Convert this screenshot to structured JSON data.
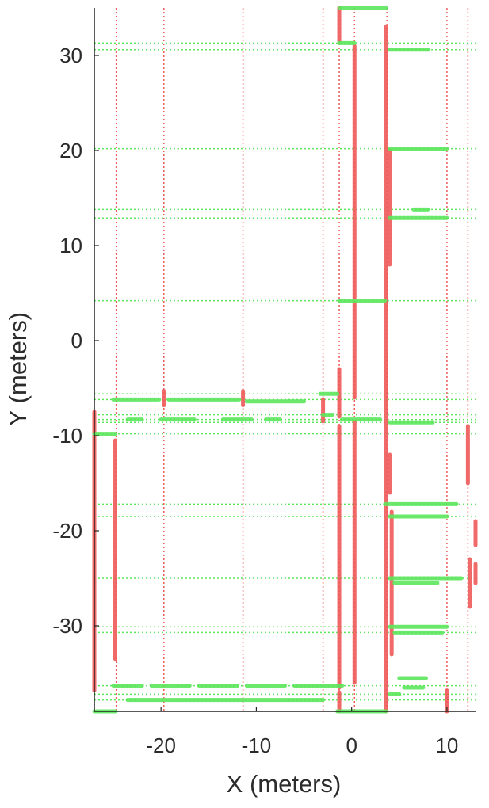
{
  "chart_data": {
    "type": "line",
    "title": "",
    "xlabel": "X (meters)",
    "ylabel": "Y (meters)",
    "xlim": [
      -27,
      13
    ],
    "ylim": [
      -39,
      35
    ],
    "xticks": [
      -20,
      -10,
      0,
      10
    ],
    "yticks": [
      -30,
      -20,
      -10,
      0,
      10,
      20,
      30
    ],
    "grid": "dotted",
    "colors": {
      "vertical": "#f05a5a",
      "horizontal": "#5ce65c",
      "axis": "#222222"
    },
    "vertical_gridlines_x": [
      -24.7,
      -19.7,
      -11.4,
      -3.0,
      -1.3,
      0.3,
      3.7,
      10.0,
      12.2
    ],
    "horizontal_gridlines_y": [
      31.3,
      30.6,
      20.2,
      13.8,
      12.9,
      4.2,
      -5.6,
      -6.2,
      -7.8,
      -8.3,
      -8.6,
      -9.8,
      -17.2,
      -18.5,
      -25.0,
      -30.1,
      -30.7,
      -36.3,
      -37.2,
      -37.8
    ],
    "series": [
      {
        "segments": [
          {
            "x": [
              -27.0,
              -27.0
            ],
            "y": [
              -7.5,
              -36.8
            ]
          },
          {
            "x": [
              -24.8,
              -24.8
            ],
            "y": [
              -10.5,
              -33.5
            ]
          },
          {
            "x": [
              -19.7,
              -19.7
            ],
            "y": [
              -5.3,
              -6.8
            ]
          },
          {
            "x": [
              -11.4,
              -11.4
            ],
            "y": [
              -5.3,
              -6.8
            ]
          },
          {
            "x": [
              -3.0,
              -3.0
            ],
            "y": [
              -6.2,
              -8.5
            ]
          },
          {
            "x": [
              -1.3,
              -1.3
            ],
            "y": [
              35.0,
              31.5
            ]
          },
          {
            "x": [
              -1.3,
              -1.3
            ],
            "y": [
              -3.0,
              -8.0
            ]
          },
          {
            "x": [
              -1.3,
              -1.3
            ],
            "y": [
              -9.0,
              -36.5
            ]
          },
          {
            "x": [
              -1.3,
              -1.3
            ],
            "y": [
              -37.0,
              -39.0
            ]
          },
          {
            "x": [
              0.3,
              0.3
            ],
            "y": [
              31.0,
              4.5
            ]
          },
          {
            "x": [
              0.3,
              0.3
            ],
            "y": [
              4.0,
              -6.0
            ]
          },
          {
            "x": [
              0.3,
              0.3
            ],
            "y": [
              -8.5,
              -36.0
            ]
          },
          {
            "x": [
              3.6,
              3.6
            ],
            "y": [
              33.0,
              -39.0
            ]
          },
          {
            "x": [
              4.0,
              4.0
            ],
            "y": [
              20.0,
              8.0
            ]
          },
          {
            "x": [
              4.0,
              4.0
            ],
            "y": [
              -12.0,
              -16.0
            ]
          },
          {
            "x": [
              4.2,
              4.2
            ],
            "y": [
              -18.0,
              -33.0
            ]
          },
          {
            "x": [
              10.0,
              10.0
            ],
            "y": [
              -36.8,
              -39.0
            ]
          },
          {
            "x": [
              12.2,
              12.2
            ],
            "y": [
              -9.0,
              -15.0
            ]
          },
          {
            "x": [
              12.4,
              12.4
            ],
            "y": [
              -23.0,
              -28.0
            ]
          },
          {
            "x": [
              13.0,
              13.0
            ],
            "y": [
              -19.0,
              -21.5
            ]
          },
          {
            "x": [
              13.0,
              13.0
            ],
            "y": [
              -23.5,
              -25.5
            ]
          }
        ]
      },
      {
        "segments": [
          {
            "x": [
              -1.2,
              3.6
            ],
            "y": [
              35.0,
              35.0
            ]
          },
          {
            "x": [
              -1.3,
              0.3
            ],
            "y": [
              31.3,
              31.3
            ]
          },
          {
            "x": [
              4.0,
              8.0
            ],
            "y": [
              30.6,
              30.6
            ]
          },
          {
            "x": [
              4.0,
              10.0
            ],
            "y": [
              20.2,
              20.2
            ]
          },
          {
            "x": [
              6.5,
              8.0
            ],
            "y": [
              13.8,
              13.8
            ]
          },
          {
            "x": [
              4.0,
              10.0
            ],
            "y": [
              12.9,
              12.9
            ]
          },
          {
            "x": [
              -1.3,
              3.5
            ],
            "y": [
              4.2,
              4.2
            ]
          },
          {
            "x": [
              -3.3,
              -1.5
            ],
            "y": [
              -5.6,
              -5.6
            ]
          },
          {
            "x": [
              -25.0,
              -20.2
            ],
            "y": [
              -6.2,
              -6.2
            ]
          },
          {
            "x": [
              -19.2,
              -11.8
            ],
            "y": [
              -6.2,
              -6.2
            ]
          },
          {
            "x": [
              -11.0,
              -5.0
            ],
            "y": [
              -6.4,
              -6.4
            ]
          },
          {
            "x": [
              -3.0,
              -2.0
            ],
            "y": [
              -7.8,
              -7.8
            ]
          },
          {
            "x": [
              -23.5,
              -22.0
            ],
            "y": [
              -8.3,
              -8.3
            ]
          },
          {
            "x": [
              -20.0,
              -16.5
            ],
            "y": [
              -8.3,
              -8.3
            ]
          },
          {
            "x": [
              -13.5,
              -10.5
            ],
            "y": [
              -8.3,
              -8.3
            ]
          },
          {
            "x": [
              -9.0,
              -7.5
            ],
            "y": [
              -8.3,
              -8.3
            ]
          },
          {
            "x": [
              -1.0,
              3.0
            ],
            "y": [
              -8.3,
              -8.3
            ]
          },
          {
            "x": [
              4.0,
              8.5
            ],
            "y": [
              -8.6,
              -8.6
            ]
          },
          {
            "x": [
              -27.0,
              -24.8
            ],
            "y": [
              -9.8,
              -9.8
            ]
          },
          {
            "x": [
              3.5,
              11.0
            ],
            "y": [
              -17.2,
              -17.2
            ]
          },
          {
            "x": [
              4.0,
              10.0
            ],
            "y": [
              -18.5,
              -18.5
            ]
          },
          {
            "x": [
              4.0,
              11.5
            ],
            "y": [
              -25.0,
              -25.0
            ]
          },
          {
            "x": [
              4.5,
              9.0
            ],
            "y": [
              -25.5,
              -25.5
            ]
          },
          {
            "x": [
              4.0,
              10.0
            ],
            "y": [
              -30.1,
              -30.1
            ]
          },
          {
            "x": [
              4.5,
              9.5
            ],
            "y": [
              -30.7,
              -30.7
            ]
          },
          {
            "x": [
              5.0,
              7.8
            ],
            "y": [
              -35.5,
              -35.5
            ]
          },
          {
            "x": [
              -25.0,
              -22.0
            ],
            "y": [
              -36.3,
              -36.3
            ]
          },
          {
            "x": [
              -21.0,
              -17.0
            ],
            "y": [
              -36.3,
              -36.3
            ]
          },
          {
            "x": [
              -16.0,
              -12.0
            ],
            "y": [
              -36.3,
              -36.3
            ]
          },
          {
            "x": [
              -11.0,
              -7.0
            ],
            "y": [
              -36.3,
              -36.3
            ]
          },
          {
            "x": [
              -6.0,
              -1.0
            ],
            "y": [
              -36.3,
              -36.3
            ]
          },
          {
            "x": [
              5.5,
              7.5
            ],
            "y": [
              -36.5,
              -36.5
            ]
          },
          {
            "x": [
              4.0,
              5.0
            ],
            "y": [
              -37.2,
              -37.2
            ]
          },
          {
            "x": [
              -23.5,
              -3.0
            ],
            "y": [
              -37.8,
              -37.8
            ]
          },
          {
            "x": [
              -27.0,
              -24.8
            ],
            "y": [
              -39.0,
              -39.0
            ]
          },
          {
            "x": [
              -1.5,
              3.6
            ],
            "y": [
              -39.0,
              -39.0
            ]
          }
        ]
      }
    ]
  }
}
